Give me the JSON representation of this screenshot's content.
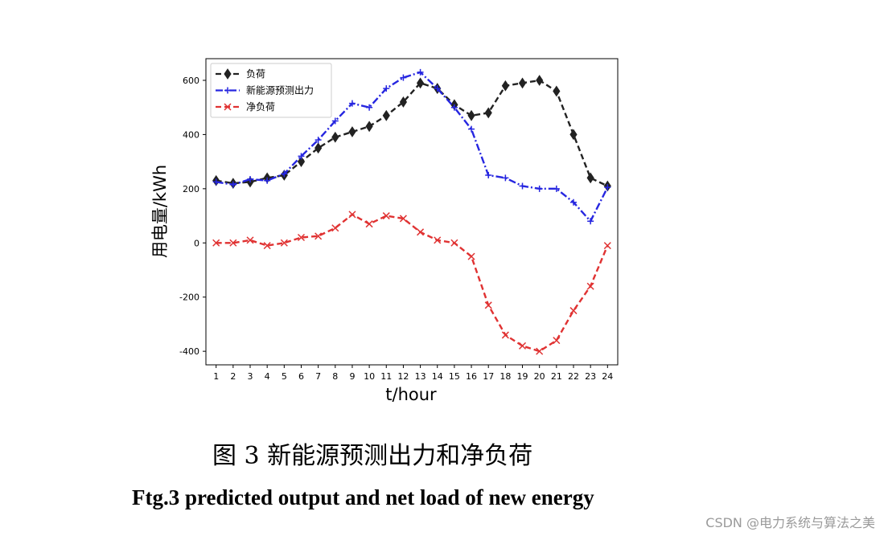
{
  "chart_data": {
    "type": "line",
    "x": [
      1,
      2,
      3,
      4,
      5,
      6,
      7,
      8,
      9,
      10,
      11,
      12,
      13,
      14,
      15,
      16,
      17,
      18,
      19,
      20,
      21,
      22,
      23,
      24
    ],
    "xlabel": "t/hour",
    "ylabel": "用电量/kWh",
    "xlim": [
      0.4,
      24.6
    ],
    "ylim": [
      -450,
      680
    ],
    "yticks": [
      -400,
      -200,
      0,
      200,
      400,
      600
    ],
    "grid": false,
    "legend_position": "top-left",
    "series": [
      {
        "name": "负荷",
        "color": "#222222",
        "dash": "dashed",
        "marker": "diamond",
        "values": [
          230,
          220,
          225,
          240,
          250,
          300,
          350,
          390,
          410,
          430,
          470,
          520,
          590,
          570,
          510,
          470,
          480,
          580,
          590,
          600,
          560,
          400,
          240,
          210
        ]
      },
      {
        "name": "新能源预测出力",
        "color": "#2626e0",
        "dash": "dashdot",
        "marker": "plus",
        "values": [
          225,
          215,
          235,
          230,
          255,
          320,
          380,
          450,
          515,
          500,
          570,
          610,
          630,
          570,
          500,
          420,
          250,
          240,
          210,
          200,
          200,
          150,
          80,
          205
        ]
      },
      {
        "name": "净负荷",
        "color": "#e03232",
        "dash": "dashed",
        "marker": "x",
        "values": [
          0,
          0,
          10,
          -10,
          0,
          20,
          25,
          55,
          105,
          70,
          100,
          90,
          40,
          10,
          0,
          -50,
          -230,
          -340,
          -380,
          -400,
          -360,
          -250,
          -160,
          -10
        ]
      }
    ]
  },
  "caption": {
    "chinese": "图 3  新能源预测出力和净负荷",
    "english": "Ftg.3 predicted output and net load of new energy"
  },
  "watermark": "CSDN @电力系统与算法之美"
}
